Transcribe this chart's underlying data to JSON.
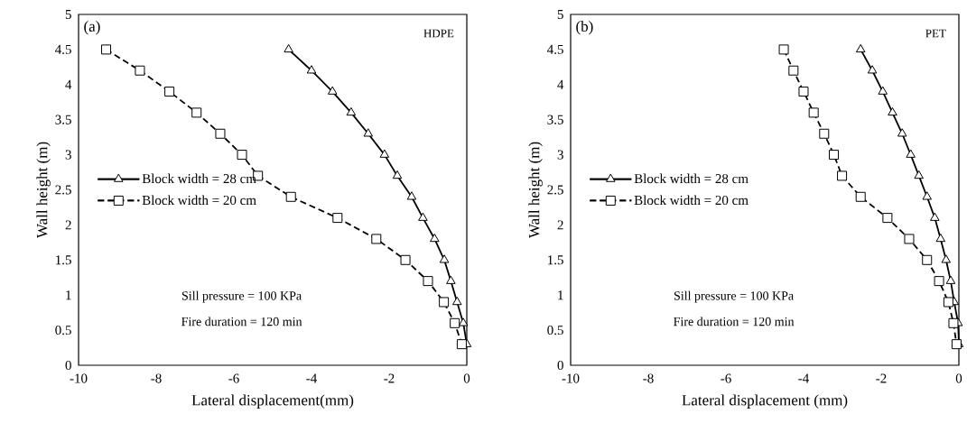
{
  "chart_data": [
    {
      "type": "line",
      "xlabel": "Lateral displacement(mm)",
      "ylabel": "Wall height (m)",
      "annotations": [
        "(a)",
        "HDPE",
        "Sill pressure = 100 KPa",
        "Fire duration = 120 min"
      ],
      "legend": "left",
      "xlim": [
        -10,
        0
      ],
      "ylim": [
        0,
        5
      ],
      "xticks": [
        -10,
        -8,
        -6,
        -4,
        -2,
        0
      ],
      "yticks": [
        0,
        0.5,
        1,
        1.5,
        2,
        2.5,
        3,
        3.5,
        4,
        4.5,
        5
      ],
      "series": [
        {
          "name": "Block width = 28 cm",
          "color": "#000000",
          "marker": "triangle",
          "line_style": "solid",
          "x": [
            -4.59,
            -4.0,
            -3.46,
            -2.98,
            -2.54,
            -2.12,
            -1.79,
            -1.42,
            -1.13,
            -0.83,
            -0.58,
            -0.41,
            -0.25,
            -0.09,
            0
          ],
          "values": [
            4.5,
            4.2,
            3.9,
            3.6,
            3.3,
            3.0,
            2.7,
            2.4,
            2.1,
            1.8,
            1.5,
            1.2,
            0.9,
            0.6,
            0.3
          ]
        },
        {
          "name": "Block width = 20 cm",
          "color": "#000000",
          "marker": "square",
          "line_style": "dashed",
          "x": [
            -9.29,
            -8.42,
            -7.66,
            -6.96,
            -6.35,
            -5.79,
            -5.38,
            -4.53,
            -3.33,
            -2.33,
            -1.58,
            -1.0,
            -0.59,
            -0.31,
            -0.13
          ],
          "values": [
            4.5,
            4.2,
            3.9,
            3.6,
            3.3,
            3.0,
            2.7,
            2.4,
            2.1,
            1.8,
            1.5,
            1.2,
            0.9,
            0.6,
            0.3
          ]
        }
      ]
    },
    {
      "type": "line",
      "xlabel": "Lateral displacement (mm)",
      "ylabel": "Wall height (m)",
      "annotations": [
        "(b)",
        "PET",
        "Sill pressure = 100 KPa",
        "Fire duration = 120 min"
      ],
      "legend": "left",
      "xlim": [
        -10,
        0
      ],
      "ylim": [
        0,
        5
      ],
      "xticks": [
        -10,
        -8,
        -6,
        -4,
        -2,
        0
      ],
      "yticks": [
        0,
        0.5,
        1,
        1.5,
        2,
        2.5,
        3,
        3.5,
        4,
        4.5,
        5
      ],
      "series": [
        {
          "name": "Block width = 28 cm",
          "color": "#000000",
          "marker": "triangle",
          "line_style": "solid",
          "x": [
            -2.53,
            -2.23,
            -1.96,
            -1.71,
            -1.46,
            -1.24,
            -1.03,
            -0.82,
            -0.62,
            -0.47,
            -0.33,
            -0.21,
            -0.12,
            -0.02,
            0
          ],
          "values": [
            4.5,
            4.2,
            3.9,
            3.6,
            3.3,
            3.0,
            2.7,
            2.4,
            2.1,
            1.8,
            1.5,
            1.2,
            0.9,
            0.6,
            0.3
          ]
        },
        {
          "name": "Block width = 20 cm",
          "color": "#000000",
          "marker": "square",
          "line_style": "dashed",
          "x": [
            -4.51,
            -4.26,
            -4.0,
            -3.74,
            -3.47,
            -3.22,
            -3.01,
            -2.53,
            -1.84,
            -1.28,
            -0.82,
            -0.51,
            -0.27,
            -0.14,
            -0.06
          ],
          "values": [
            4.5,
            4.2,
            3.9,
            3.6,
            3.3,
            3.0,
            2.7,
            2.4,
            2.1,
            1.8,
            1.5,
            1.2,
            0.9,
            0.6,
            0.3
          ]
        }
      ]
    }
  ]
}
